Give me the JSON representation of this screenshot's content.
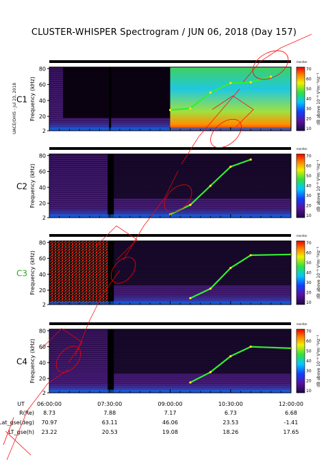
{
  "title": "CLUSTER-WHISPER Spectrogram / JUN 06, 2018 (Day 157)",
  "side_note": "UACE/OHIS - Jul 23, 2018",
  "colorbar": {
    "ticks": [
      "70",
      "60",
      "50",
      "40",
      "30",
      "20",
      "10"
    ],
    "unit_label": "dB above 10⁻⁸ V²m⁻²Hz⁻¹",
    "corner_label": "monitor"
  },
  "colors": {
    "background_dark": "#1a0630",
    "mid_purple": "#4a1a80",
    "cyan": "#22c8ff",
    "green": "#33dd33",
    "yellow": "#ffee00",
    "red": "#ee2200",
    "watermark": "#ff0000"
  },
  "chart_data": [
    {
      "type": "heatmap",
      "panel": "C1",
      "ylabel": "Frequency (kHz)",
      "yticks": [
        2,
        20,
        40,
        60,
        80
      ],
      "ylim": [
        2,
        82
      ],
      "xlim": [
        "06:00:00",
        "12:00:00"
      ],
      "notes": "Active sounding period from ~09:00 with high intensity",
      "emission_track": [
        {
          "t": "09:00",
          "f": 28
        },
        {
          "t": "09:30",
          "f": 30
        },
        {
          "t": "10:00",
          "f": 50
        },
        {
          "t": "10:30",
          "f": 62
        },
        {
          "t": "11:00",
          "f": 63
        },
        {
          "t": "11:30",
          "f": 70
        }
      ]
    },
    {
      "type": "heatmap",
      "panel": "C2",
      "ylabel": "Frequency (kHz)",
      "yticks": [
        2,
        20,
        40,
        60,
        80
      ],
      "ylim": [
        2,
        82
      ],
      "xlim": [
        "06:00:00",
        "12:00:00"
      ],
      "emission_track": [
        {
          "t": "09:00",
          "f": 6
        },
        {
          "t": "09:30",
          "f": 18
        },
        {
          "t": "10:00",
          "f": 42
        },
        {
          "t": "10:30",
          "f": 66
        },
        {
          "t": "11:00",
          "f": 75
        }
      ]
    },
    {
      "type": "heatmap",
      "panel": "C3",
      "ylabel": "Frequency (kHz)",
      "yticks": [
        2,
        20,
        40,
        60,
        80
      ],
      "ylim": [
        2,
        82
      ],
      "xlim": [
        "06:00:00",
        "12:00:00"
      ],
      "emission_track": [
        {
          "t": "09:30",
          "f": 10
        },
        {
          "t": "10:00",
          "f": 22
        },
        {
          "t": "10:30",
          "f": 48
        },
        {
          "t": "11:00",
          "f": 64
        },
        {
          "t": "12:00",
          "f": 65
        }
      ]
    },
    {
      "type": "heatmap",
      "panel": "C4",
      "ylabel": "Frequency (kHz)",
      "yticks": [
        2,
        20,
        40,
        60,
        80
      ],
      "ylim": [
        2,
        82
      ],
      "xlim": [
        "06:00:00",
        "12:00:00"
      ],
      "emission_track": [
        {
          "t": "09:30",
          "f": 15
        },
        {
          "t": "10:00",
          "f": 28
        },
        {
          "t": "10:30",
          "f": 48
        },
        {
          "t": "11:00",
          "f": 60
        },
        {
          "t": "12:00",
          "f": 58
        }
      ]
    }
  ],
  "panels": [
    {
      "label": "C1",
      "color": "#000000"
    },
    {
      "label": "C2",
      "color": "#000000"
    },
    {
      "label": "C3",
      "color": "#22aa22"
    },
    {
      "label": "C4",
      "color": "#000000"
    }
  ],
  "ephemeris": {
    "rows": [
      {
        "label": "UT",
        "values": [
          "06:00:00",
          "07:30:00",
          "09:00:00",
          "10:30:00",
          "12:00:00"
        ]
      },
      {
        "label": "R(Re)",
        "values": [
          "8.73",
          "7.88",
          "7.17",
          "6.73",
          "6.68"
        ]
      },
      {
        "label": "Lat_gse(deg)",
        "values": [
          "70.97",
          "63.11",
          "46.06",
          "23.53",
          "-1.41"
        ]
      },
      {
        "label": "LT_gse(h)",
        "values": [
          "23.22",
          "20.53",
          "19.08",
          "18.26",
          "17.65"
        ]
      }
    ]
  }
}
